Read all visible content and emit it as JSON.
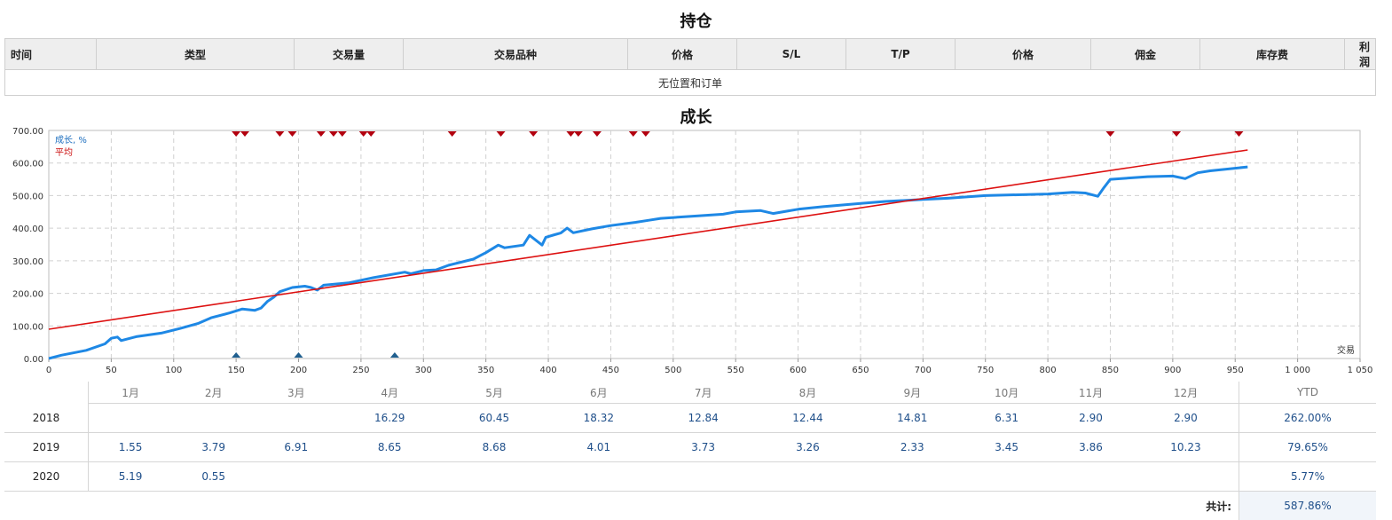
{
  "positions": {
    "title": "持仓",
    "columns": [
      "时间",
      "类型",
      "交易量",
      "交易品种",
      "价格",
      "S/L",
      "T/P",
      "价格",
      "佣金",
      "库存费",
      "利润"
    ],
    "empty_message": "无位置和订单"
  },
  "growth": {
    "title": "成长",
    "legend": {
      "growth": "成长, %",
      "average": "平均"
    },
    "xlabel": "交易"
  },
  "colors": {
    "growth_line": "#1e88e5",
    "average_line": "#dd1111",
    "sell_marker": "#b3000f",
    "buy_marker": "#1f5f8f"
  },
  "chart_data": {
    "type": "line",
    "ylim": [
      0,
      700
    ],
    "xlim": [
      0,
      1050
    ],
    "yticks": [
      "0.00",
      "100.00",
      "200.00",
      "300.00",
      "400.00",
      "500.00",
      "600.00",
      "700.00"
    ],
    "xticks": [
      "0",
      "50",
      "100",
      "150",
      "200",
      "250",
      "300",
      "350",
      "400",
      "450",
      "500",
      "550",
      "600",
      "650",
      "700",
      "750",
      "800",
      "850",
      "900",
      "950",
      "1 000",
      "1 050"
    ],
    "grid": true,
    "legend_position": "top-left",
    "series": [
      {
        "name": "成长, %",
        "points": [
          [
            0,
            0
          ],
          [
            10,
            10
          ],
          [
            30,
            25
          ],
          [
            45,
            45
          ],
          [
            50,
            62
          ],
          [
            55,
            66
          ],
          [
            58,
            55
          ],
          [
            70,
            67
          ],
          [
            90,
            78
          ],
          [
            105,
            92
          ],
          [
            120,
            108
          ],
          [
            130,
            125
          ],
          [
            145,
            140
          ],
          [
            155,
            152
          ],
          [
            165,
            148
          ],
          [
            170,
            155
          ],
          [
            175,
            175
          ],
          [
            180,
            188
          ],
          [
            185,
            205
          ],
          [
            195,
            218
          ],
          [
            205,
            222
          ],
          [
            210,
            218
          ],
          [
            215,
            210
          ],
          [
            220,
            225
          ],
          [
            240,
            232
          ],
          [
            260,
            248
          ],
          [
            285,
            265
          ],
          [
            290,
            260
          ],
          [
            300,
            270
          ],
          [
            310,
            272
          ],
          [
            320,
            286
          ],
          [
            340,
            305
          ],
          [
            350,
            325
          ],
          [
            360,
            348
          ],
          [
            365,
            340
          ],
          [
            380,
            348
          ],
          [
            385,
            378
          ],
          [
            395,
            348
          ],
          [
            398,
            372
          ],
          [
            405,
            380
          ],
          [
            410,
            385
          ],
          [
            415,
            400
          ],
          [
            420,
            386
          ],
          [
            435,
            398
          ],
          [
            450,
            408
          ],
          [
            470,
            418
          ],
          [
            480,
            424
          ],
          [
            490,
            430
          ],
          [
            520,
            438
          ],
          [
            540,
            443
          ],
          [
            550,
            450
          ],
          [
            570,
            454
          ],
          [
            580,
            445
          ],
          [
            600,
            458
          ],
          [
            620,
            466
          ],
          [
            650,
            476
          ],
          [
            670,
            482
          ],
          [
            700,
            488
          ],
          [
            720,
            492
          ],
          [
            750,
            500
          ],
          [
            800,
            505
          ],
          [
            820,
            510
          ],
          [
            830,
            508
          ],
          [
            840,
            498
          ],
          [
            845,
            525
          ],
          [
            850,
            550
          ],
          [
            880,
            558
          ],
          [
            900,
            560
          ],
          [
            910,
            552
          ],
          [
            920,
            570
          ],
          [
            930,
            576
          ],
          [
            960,
            588
          ]
        ]
      },
      {
        "name": "平均",
        "points": [
          [
            0,
            90
          ],
          [
            960,
            640
          ]
        ]
      }
    ],
    "sell_markers_x": [
      150,
      157,
      185,
      195,
      218,
      228,
      235,
      252,
      258,
      323,
      362,
      388,
      418,
      424,
      439,
      468,
      478,
      850,
      903,
      953
    ],
    "buy_markers_x": [
      150,
      200,
      277
    ]
  },
  "monthly": {
    "months": [
      "1月",
      "2月",
      "3月",
      "4月",
      "5月",
      "6月",
      "7月",
      "8月",
      "9月",
      "10月",
      "11月",
      "12月"
    ],
    "ytd_label": "YTD",
    "rows": [
      {
        "year": "2018",
        "values": [
          "",
          "",
          "",
          "16.29",
          "60.45",
          "18.32",
          "12.84",
          "12.44",
          "14.81",
          "6.31",
          "2.90",
          "2.90"
        ],
        "ytd": "262.00%"
      },
      {
        "year": "2019",
        "values": [
          "1.55",
          "3.79",
          "6.91",
          "8.65",
          "8.68",
          "4.01",
          "3.73",
          "3.26",
          "2.33",
          "3.45",
          "3.86",
          "10.23"
        ],
        "ytd": "79.65%"
      },
      {
        "year": "2020",
        "values": [
          "5.19",
          "0.55",
          "",
          "",
          "",
          "",
          "",
          "",
          "",
          "",
          "",
          ""
        ],
        "ytd": "5.77%"
      }
    ],
    "total_label": "共计:",
    "total_value": "587.86%"
  }
}
